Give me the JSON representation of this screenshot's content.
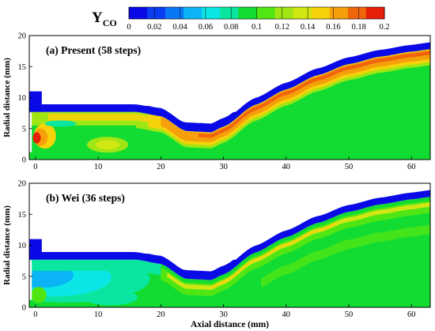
{
  "colorbar": {
    "label_main": "Y",
    "label_sub": "CO",
    "ticks": [
      "0",
      "0.02",
      "0.04",
      "0.06",
      "0.08",
      "0.1",
      "0.12",
      "0.14",
      "0.16",
      "0.18",
      "0.2"
    ],
    "colors": [
      "#0a0ae6",
      "#0a3cf0",
      "#0a78f5",
      "#0ab4f5",
      "#0ae6e6",
      "#0ae6a0",
      "#12dc32",
      "#50e614",
      "#a0e614",
      "#d2e614",
      "#f5d20a",
      "#f5a00a",
      "#f0640a",
      "#e61e0a"
    ]
  },
  "chart_data": [
    {
      "type": "heatmap",
      "title": "(a) Present (58 steps)",
      "ylabel": "Radial distance (mm)",
      "xlabel": "",
      "xlim": [
        -1,
        63
      ],
      "ylim": [
        0,
        20
      ],
      "x_ticks": [
        "0",
        "10",
        "20",
        "30",
        "40",
        "50",
        "60"
      ],
      "y_ticks": [
        "0",
        "5",
        "10",
        "15",
        "20"
      ],
      "wall_upper_y": [
        [
          -1,
          7.7
        ],
        [
          16,
          7.7
        ],
        [
          20,
          7.0
        ],
        [
          24,
          4.6
        ],
        [
          26,
          4.5
        ],
        [
          28,
          4.4
        ],
        [
          30,
          5.3
        ],
        [
          35,
          8.8
        ],
        [
          40,
          11.3
        ],
        [
          45,
          13.6
        ],
        [
          50,
          15.4
        ],
        [
          55,
          16.6
        ],
        [
          60,
          17.4
        ],
        [
          63,
          17.8
        ]
      ],
      "features": [
        "orange/red high-CO band along lower wall surface",
        "red core near inlet at x 0-2, r 2-5",
        "yellow high band near x 10-14, r 2-4"
      ]
    },
    {
      "type": "heatmap",
      "title": "(b) Wei (36 steps)",
      "ylabel": "Radial distance (mm)",
      "xlabel": "Axial distance (mm)",
      "xlim": [
        -1,
        63
      ],
      "ylim": [
        0,
        20
      ],
      "x_ticks": [
        "0",
        "10",
        "20",
        "30",
        "40",
        "50",
        "60"
      ],
      "y_ticks": [
        "0",
        "5",
        "10",
        "15",
        "20"
      ],
      "wall_upper_y": [
        [
          -1,
          7.7
        ],
        [
          16,
          7.7
        ],
        [
          20,
          7.0
        ],
        [
          24,
          4.6
        ],
        [
          26,
          4.5
        ],
        [
          28,
          4.4
        ],
        [
          30,
          5.3
        ],
        [
          35,
          8.8
        ],
        [
          40,
          11.3
        ],
        [
          45,
          13.6
        ],
        [
          50,
          15.4
        ],
        [
          55,
          16.6
        ],
        [
          60,
          17.4
        ],
        [
          63,
          17.8
        ]
      ],
      "features": [
        "light blue low-CO region near inlet x -1 to 15",
        "thin yellow band along lower wall surface",
        "green field elsewhere"
      ]
    }
  ]
}
